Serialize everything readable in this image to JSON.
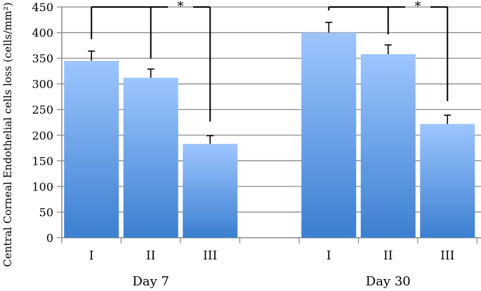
{
  "chart_data": {
    "type": "bar",
    "title": "",
    "xlabel": "",
    "ylabel": "Central Corneal Endothelial cells loss (cells/mm²)",
    "ylim": [
      0,
      450
    ],
    "yticks": [
      "0",
      "50",
      "100",
      "150",
      "200",
      "250",
      "300",
      "350",
      "400",
      "450"
    ],
    "grid": true,
    "groups": [
      {
        "label": "Day 7",
        "categories": [
          "I",
          "II",
          "III"
        ],
        "values": [
          345,
          312,
          183
        ],
        "errors": [
          19,
          17,
          16
        ],
        "significance_label": "*"
      },
      {
        "label": "Day 30",
        "categories": [
          "I",
          "II",
          "III"
        ],
        "values": [
          400,
          358,
          222
        ],
        "errors": [
          20,
          18,
          17
        ],
        "significance_label": "*"
      }
    ],
    "colors": {
      "bar_top": "#9ec6ff",
      "bar_bottom": "#3b7fd0",
      "grid": "#898989",
      "axis": "#898989",
      "error": "#000000"
    }
  }
}
